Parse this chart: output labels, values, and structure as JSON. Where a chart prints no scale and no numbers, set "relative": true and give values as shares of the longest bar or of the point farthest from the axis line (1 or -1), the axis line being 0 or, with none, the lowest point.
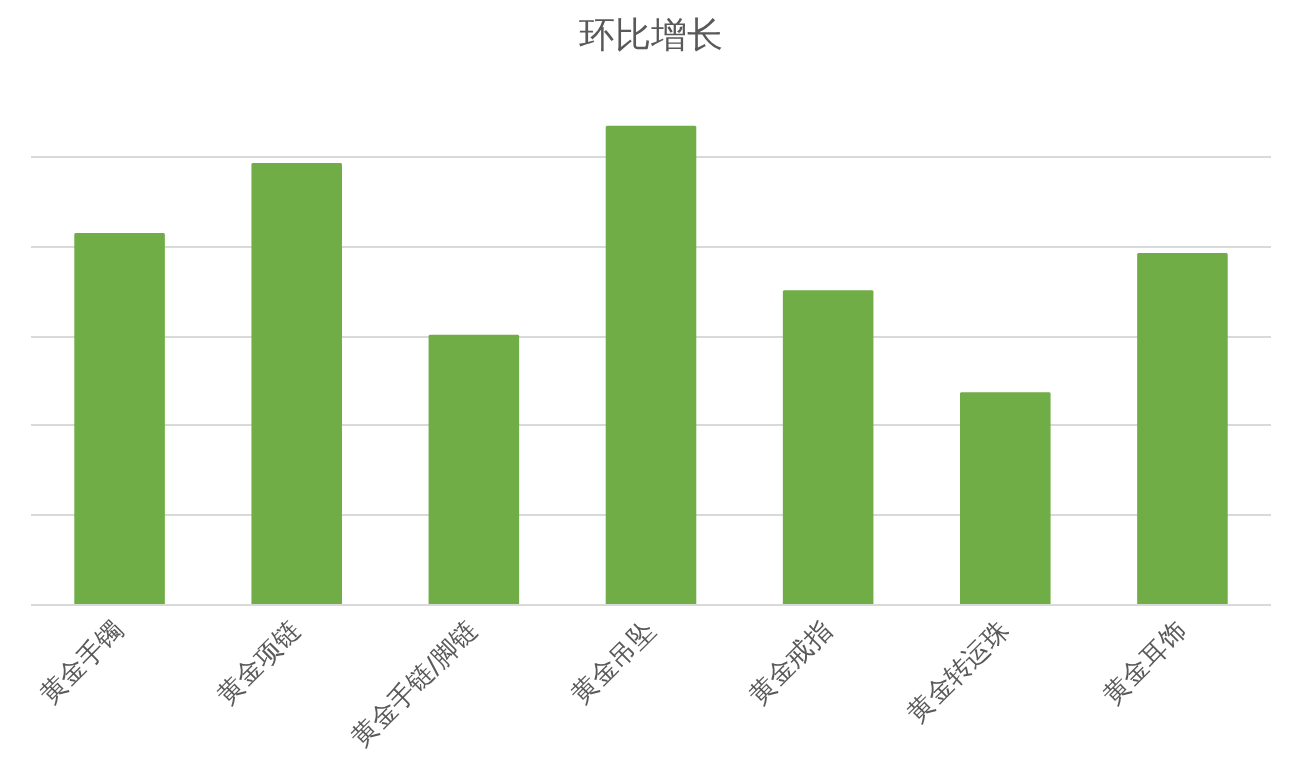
{
  "chart_data": {
    "type": "bar",
    "title": "环比增长",
    "relative": true,
    "grid": "y",
    "categories": [
      "黄金手镯",
      "黄金项链",
      "黄金手链/脚链",
      "黄金吊坠",
      "黄金戒指",
      "黄金转运珠",
      "黄金耳饰"
    ],
    "values": [
      0.776,
      0.922,
      0.563,
      1,
      0.656,
      0.443,
      0.734
    ],
    "color": "#70ad47"
  }
}
